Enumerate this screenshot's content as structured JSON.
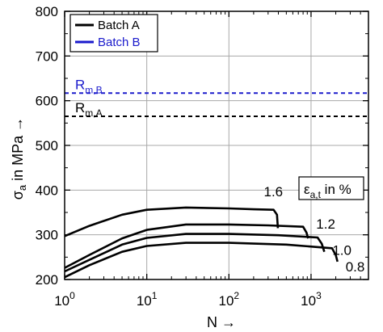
{
  "chart_data": {
    "type": "line",
    "xlabel_main": "N",
    "xlabel_arrow": "→",
    "ylabel_sym": "σ",
    "ylabel_sub": "a",
    "ylabel_rest": " in MPa →",
    "x_scale": "log",
    "xlim": [
      1,
      5000
    ],
    "ylim": [
      200,
      800
    ],
    "grid": true,
    "x_ticks": [
      {
        "value": 1,
        "base": "10",
        "exp": "0"
      },
      {
        "value": 10,
        "base": "10",
        "exp": "1"
      },
      {
        "value": 100,
        "base": "10",
        "exp": "2"
      },
      {
        "value": 1000,
        "base": "10",
        "exp": "3"
      }
    ],
    "y_ticks": [
      "200",
      "300",
      "400",
      "500",
      "600",
      "700",
      "800"
    ],
    "legend": {
      "placement": "top-left",
      "entries": [
        {
          "label": "Batch A",
          "color": "#000000",
          "dash": "solid"
        },
        {
          "label": "Batch B",
          "color": "#1a1acc",
          "dash": "solid"
        }
      ]
    },
    "reference_lines": [
      {
        "main": "R",
        "sub": "m,B",
        "y": 617,
        "color": "#1a1acc"
      },
      {
        "main": "R",
        "sub": "m,A",
        "y": 565,
        "color": "#000000"
      }
    ],
    "amplitude_box": {
      "main": "ε",
      "sub": "a,t",
      "rest": " in %"
    },
    "series": [
      {
        "name": "1.6",
        "points": [
          [
            1,
            297
          ],
          [
            2,
            320
          ],
          [
            5,
            345
          ],
          [
            10,
            356
          ],
          [
            30,
            361
          ],
          [
            100,
            359
          ],
          [
            200,
            357
          ],
          [
            350,
            356
          ],
          [
            385,
            345
          ],
          [
            395,
            315
          ]
        ]
      },
      {
        "name": "1.2",
        "points": [
          [
            1,
            226
          ],
          [
            2,
            255
          ],
          [
            5,
            292
          ],
          [
            10,
            311
          ],
          [
            30,
            323
          ],
          [
            100,
            323
          ],
          [
            300,
            321
          ],
          [
            800,
            318
          ],
          [
            880,
            305
          ],
          [
            920,
            292
          ]
        ]
      },
      {
        "name": "1.0",
        "points": [
          [
            1,
            218
          ],
          [
            2,
            244
          ],
          [
            5,
            278
          ],
          [
            10,
            293
          ],
          [
            30,
            302
          ],
          [
            100,
            302
          ],
          [
            400,
            299
          ],
          [
            1200,
            294
          ],
          [
            1350,
            280
          ],
          [
            1450,
            262
          ]
        ]
      },
      {
        "name": "0.8",
        "points": [
          [
            1,
            205
          ],
          [
            2,
            232
          ],
          [
            5,
            262
          ],
          [
            10,
            275
          ],
          [
            30,
            282
          ],
          [
            100,
            282
          ],
          [
            500,
            278
          ],
          [
            1800,
            270
          ],
          [
            2000,
            255
          ],
          [
            2100,
            240
          ]
        ]
      }
    ]
  }
}
